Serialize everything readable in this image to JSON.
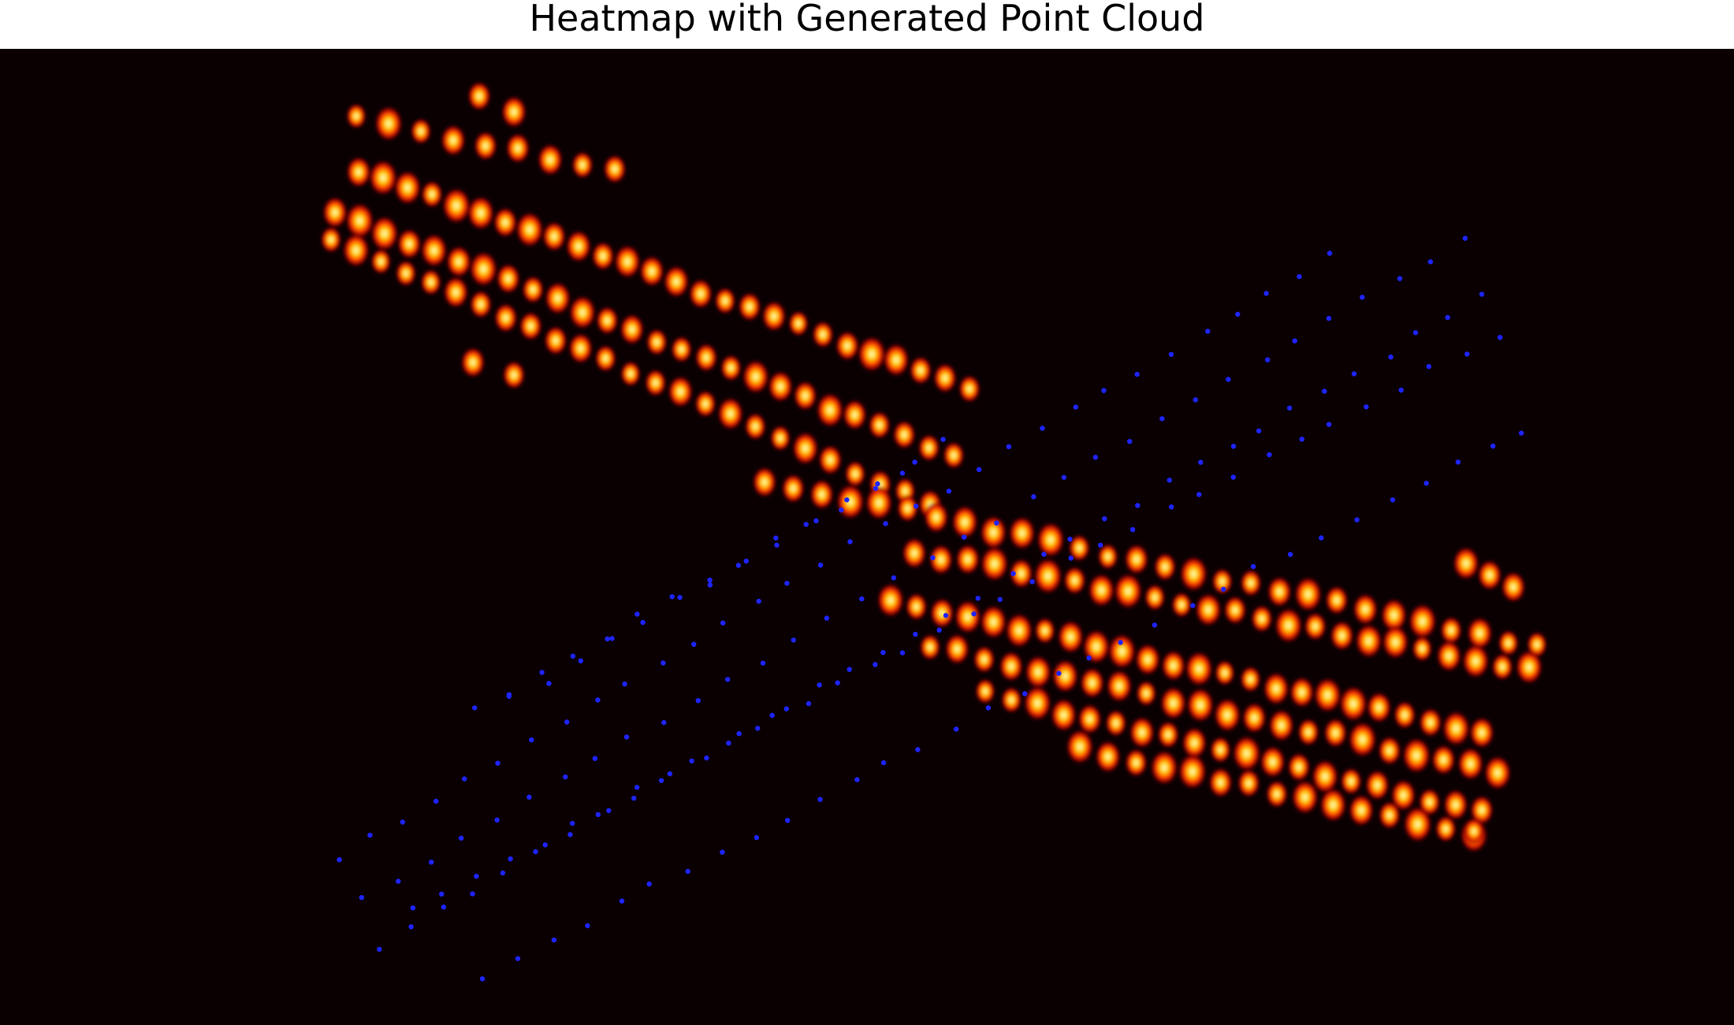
{
  "chart_data": {
    "type": "heatmap",
    "title": "Heatmap with Generated Point Cloud",
    "xlabel": "",
    "ylabel": "",
    "axes_visible": false,
    "grid": false,
    "colormap": "hot",
    "colors": {
      "background": "#0a0002",
      "heat_low": "#8b0000",
      "heat_mid": "#ff2000",
      "heat_high": "#ffb000",
      "heat_peak": "#ffffe0",
      "points": "#1e24ff"
    },
    "heat_blobs": {
      "description_units": "image pixels",
      "rows": [
        {
          "start": [
            452,
            150
          ],
          "end": [
            780,
            215
          ],
          "count": 9
        },
        {
          "start": [
            455,
            215
          ],
          "end": [
            1230,
            490
          ],
          "count": 26
        },
        {
          "start": [
            425,
            270
          ],
          "end": [
            1210,
            580
          ],
          "count": 26
        },
        {
          "start": [
            420,
            305
          ],
          "end": [
            1180,
            640
          ],
          "count": 25
        },
        {
          "start": [
            970,
            610
          ],
          "end": [
            1950,
            820
          ],
          "count": 28
        },
        {
          "start": [
            1160,
            700
          ],
          "end": [
            1940,
            850
          ],
          "count": 24
        },
        {
          "start": [
            1130,
            760
          ],
          "end": [
            1880,
            930
          ],
          "count": 24
        },
        {
          "start": [
            1180,
            820
          ],
          "end": [
            1900,
            980
          ],
          "count": 22
        },
        {
          "start": [
            1250,
            880
          ],
          "end": [
            1880,
            1030
          ],
          "count": 20
        },
        {
          "start": [
            1370,
            950
          ],
          "end": [
            1870,
            1060
          ],
          "count": 15
        }
      ],
      "singles": [
        [
          608,
          122
        ],
        [
          652,
          142
        ],
        [
          600,
          460
        ],
        [
          652,
          476
        ],
        [
          1860,
          715
        ],
        [
          1890,
          730
        ],
        [
          1920,
          745
        ],
        [
          1870,
          1055
        ]
      ]
    },
    "point_cloud": {
      "rows": [
        {
          "start": [
            430,
            1088
          ],
          "end": [
            1690,
            322
          ],
          "count": 32
        },
        {
          "start": [
            458,
            1142
          ],
          "end": [
            1860,
            306
          ],
          "count": 34
        },
        {
          "start": [
            483,
            1203
          ],
          "end": [
            1880,
            378
          ],
          "count": 36
        },
        {
          "start": [
            520,
            1157
          ],
          "end": [
            1900,
            425
          ],
          "count": 34
        },
        {
          "start": [
            615,
            1238
          ],
          "end": [
            1935,
            545
          ],
          "count": 32
        },
        {
          "start": [
            600,
            900
          ],
          "end": [
            1150,
            600
          ],
          "count": 14
        },
        {
          "start": [
            650,
            888
          ],
          "end": [
            1200,
            560
          ],
          "count": 14
        }
      ]
    }
  }
}
